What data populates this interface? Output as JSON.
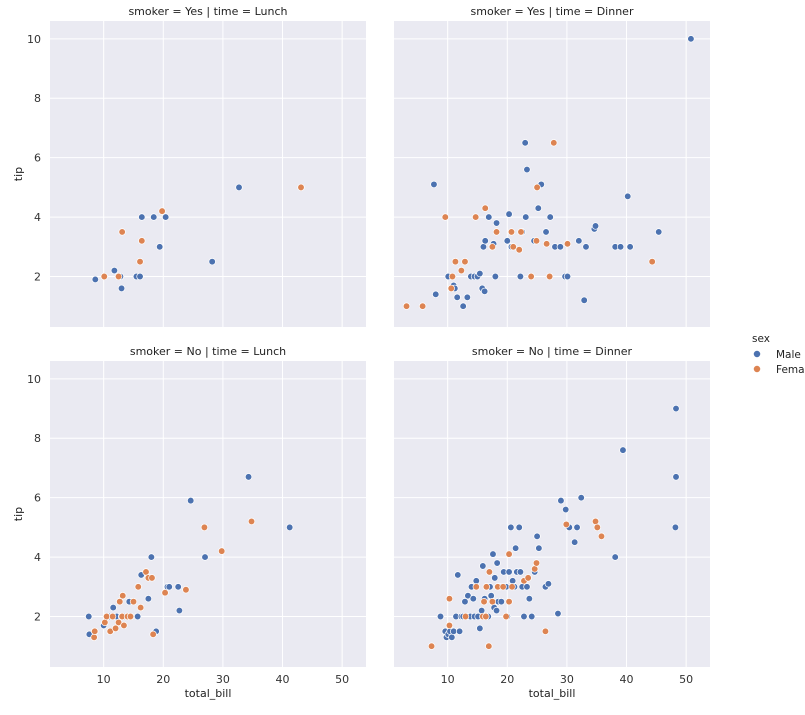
{
  "chart_data": {
    "type": "scatter",
    "x_label": "total_bill",
    "y_label": "tip",
    "xlim": [
      1,
      54
    ],
    "ylim": [
      0.3,
      10.6
    ],
    "x_ticks": [
      10,
      20,
      30,
      40,
      50
    ],
    "y_ticks": [
      2,
      4,
      6,
      8,
      10
    ],
    "legend": {
      "title": "sex",
      "entries": [
        {
          "label": "Male",
          "color": "#4C72B0"
        },
        {
          "label": "Female",
          "color": "#DD8452"
        }
      ],
      "placement": "right"
    },
    "panels": [
      {
        "title": "smoker = Yes | time = Lunch",
        "row": 0,
        "col": 0,
        "series": [
          {
            "name": "Male",
            "points": [
              [
                8.6,
                1.9
              ],
              [
                11.8,
                2.2
              ],
              [
                12.8,
                2.0
              ],
              [
                13.0,
                1.6
              ],
              [
                15.5,
                2.0
              ],
              [
                16.1,
                2.0
              ],
              [
                16.4,
                4.0
              ],
              [
                18.4,
                4.0
              ],
              [
                19.4,
                3.0
              ],
              [
                20.4,
                4.0
              ],
              [
                28.2,
                2.5
              ],
              [
                32.7,
                5.0
              ]
            ]
          },
          {
            "name": "Female",
            "points": [
              [
                10.1,
                2.0
              ],
              [
                12.5,
                2.0
              ],
              [
                13.1,
                3.5
              ],
              [
                16.1,
                2.5
              ],
              [
                16.4,
                3.2
              ],
              [
                19.8,
                4.2
              ],
              [
                43.1,
                5.0
              ]
            ]
          }
        ]
      },
      {
        "title": "smoker = Yes | time = Dinner",
        "row": 0,
        "col": 1,
        "series": [
          {
            "name": "Male",
            "points": [
              [
                7.7,
                5.1
              ],
              [
                8.0,
                1.4
              ],
              [
                10.1,
                2.0
              ],
              [
                11.0,
                1.7
              ],
              [
                11.2,
                1.6
              ],
              [
                11.6,
                1.3
              ],
              [
                12.6,
                1.0
              ],
              [
                13.3,
                1.3
              ],
              [
                13.9,
                2.0
              ],
              [
                14.5,
                2.0
              ],
              [
                15.0,
                2.0
              ],
              [
                15.4,
                2.1
              ],
              [
                15.8,
                1.6
              ],
              [
                16.0,
                3.0
              ],
              [
                16.2,
                1.5
              ],
              [
                16.3,
                3.2
              ],
              [
                16.9,
                4.0
              ],
              [
                17.4,
                3.0
              ],
              [
                17.7,
                3.1
              ],
              [
                18.0,
                2.0
              ],
              [
                18.2,
                3.8
              ],
              [
                20.0,
                3.2
              ],
              [
                20.3,
                4.1
              ],
              [
                20.7,
                3.0
              ],
              [
                22.2,
                2.0
              ],
              [
                22.5,
                3.5
              ],
              [
                23.0,
                6.5
              ],
              [
                23.1,
                4.0
              ],
              [
                23.3,
                5.6
              ],
              [
                24.0,
                2.0
              ],
              [
                24.5,
                3.2
              ],
              [
                25.2,
                4.3
              ],
              [
                25.7,
                5.1
              ],
              [
                26.5,
                3.5
              ],
              [
                27.2,
                4.0
              ],
              [
                28.0,
                3.0
              ],
              [
                28.9,
                3.0
              ],
              [
                29.7,
                2.0
              ],
              [
                30.1,
                2.0
              ],
              [
                32.0,
                3.2
              ],
              [
                32.9,
                1.2
              ],
              [
                33.2,
                3.0
              ],
              [
                34.6,
                3.6
              ],
              [
                34.8,
                3.7
              ],
              [
                38.1,
                3.0
              ],
              [
                39.0,
                3.0
              ],
              [
                40.2,
                4.7
              ],
              [
                40.6,
                3.0
              ],
              [
                45.4,
                3.5
              ],
              [
                50.8,
                10.0
              ]
            ]
          },
          {
            "name": "Female",
            "points": [
              [
                3.1,
                1.0
              ],
              [
                5.8,
                1.0
              ],
              [
                9.6,
                4.0
              ],
              [
                10.6,
                1.6
              ],
              [
                10.8,
                2.0
              ],
              [
                11.3,
                2.5
              ],
              [
                12.3,
                2.2
              ],
              [
                12.9,
                2.5
              ],
              [
                14.7,
                4.0
              ],
              [
                16.3,
                4.3
              ],
              [
                17.5,
                3.0
              ],
              [
                18.2,
                3.5
              ],
              [
                20.7,
                3.5
              ],
              [
                21.0,
                3.0
              ],
              [
                22.0,
                2.9
              ],
              [
                22.3,
                3.5
              ],
              [
                24.0,
                2.0
              ],
              [
                24.9,
                3.2
              ],
              [
                25.0,
                5.0
              ],
              [
                26.6,
                3.1
              ],
              [
                27.1,
                2.0
              ],
              [
                27.8,
                6.5
              ],
              [
                30.1,
                3.1
              ],
              [
                44.3,
                2.5
              ]
            ]
          }
        ]
      },
      {
        "title": "smoker = No | time = Lunch",
        "row": 1,
        "col": 0,
        "series": [
          {
            "name": "Male",
            "points": [
              [
                7.5,
                2.0
              ],
              [
                7.6,
                1.4
              ],
              [
                8.5,
                1.5
              ],
              [
                10.0,
                1.7
              ],
              [
                11.0,
                2.0
              ],
              [
                11.6,
                2.3
              ],
              [
                12.2,
                2.0
              ],
              [
                13.0,
                2.0
              ],
              [
                13.5,
                2.0
              ],
              [
                14.3,
                2.5
              ],
              [
                15.7,
                2.0
              ],
              [
                16.3,
                3.4
              ],
              [
                17.5,
                2.6
              ],
              [
                18.0,
                4.0
              ],
              [
                18.8,
                1.5
              ],
              [
                20.7,
                3.0
              ],
              [
                21.0,
                3.0
              ],
              [
                22.5,
                3.0
              ],
              [
                22.7,
                2.2
              ],
              [
                24.6,
                5.9
              ],
              [
                27.0,
                4.0
              ],
              [
                34.3,
                6.7
              ],
              [
                41.2,
                5.0
              ]
            ]
          },
          {
            "name": "Female",
            "points": [
              [
                8.4,
                1.3
              ],
              [
                8.5,
                1.5
              ],
              [
                10.2,
                1.8
              ],
              [
                10.5,
                2.0
              ],
              [
                11.1,
                1.5
              ],
              [
                11.5,
                2.0
              ],
              [
                12.0,
                1.6
              ],
              [
                12.5,
                1.8
              ],
              [
                12.7,
                2.5
              ],
              [
                13.1,
                2.0
              ],
              [
                13.4,
                1.7
              ],
              [
                13.2,
                2.7
              ],
              [
                14.0,
                2.0
              ],
              [
                14.5,
                2.0
              ],
              [
                15.0,
                2.5
              ],
              [
                15.8,
                3.0
              ],
              [
                16.2,
                2.3
              ],
              [
                17.1,
                3.5
              ],
              [
                17.5,
                3.3
              ],
              [
                18.3,
                1.4
              ],
              [
                18.1,
                3.3
              ],
              [
                20.3,
                2.8
              ],
              [
                23.8,
                2.9
              ],
              [
                26.9,
                5.0
              ],
              [
                29.8,
                4.2
              ],
              [
                34.8,
                5.2
              ]
            ]
          }
        ]
      },
      {
        "title": "smoker = No | time = Dinner",
        "row": 1,
        "col": 1,
        "series": [
          {
            "name": "Male",
            "points": [
              [
                8.8,
                2.0
              ],
              [
                9.6,
                1.5
              ],
              [
                9.8,
                1.3
              ],
              [
                10.1,
                1.4
              ],
              [
                10.3,
                1.7
              ],
              [
                10.4,
                1.5
              ],
              [
                10.7,
                1.3
              ],
              [
                11.0,
                1.5
              ],
              [
                11.4,
                2.0
              ],
              [
                11.7,
                3.4
              ],
              [
                12.0,
                1.5
              ],
              [
                12.3,
                2.0
              ],
              [
                12.6,
                2.0
              ],
              [
                12.9,
                2.5
              ],
              [
                13.3,
                2.0
              ],
              [
                13.4,
                2.7
              ],
              [
                13.8,
                2.0
              ],
              [
                14.0,
                3.0
              ],
              [
                14.3,
                2.6
              ],
              [
                14.5,
                2.0
              ],
              [
                14.8,
                3.2
              ],
              [
                15.1,
                2.0
              ],
              [
                15.4,
                1.6
              ],
              [
                15.7,
                2.2
              ],
              [
                15.9,
                3.7
              ],
              [
                16.2,
                2.6
              ],
              [
                16.5,
                3.0
              ],
              [
                16.8,
                2.0
              ],
              [
                17.1,
                3.0
              ],
              [
                17.3,
                2.7
              ],
              [
                17.6,
                4.1
              ],
              [
                17.8,
                2.3
              ],
              [
                17.9,
                3.3
              ],
              [
                18.2,
                2.2
              ],
              [
                18.3,
                3.8
              ],
              [
                18.5,
                2.5
              ],
              [
                18.7,
                3.0
              ],
              [
                19.0,
                2.5
              ],
              [
                19.4,
                3.5
              ],
              [
                19.8,
                3.0
              ],
              [
                20.0,
                2.0
              ],
              [
                20.3,
                3.5
              ],
              [
                20.6,
                5.0
              ],
              [
                20.9,
                3.2
              ],
              [
                21.2,
                3.0
              ],
              [
                21.4,
                4.3
              ],
              [
                21.6,
                3.5
              ],
              [
                22.0,
                5.0
              ],
              [
                22.2,
                3.5
              ],
              [
                22.5,
                3.0
              ],
              [
                22.8,
                2.0
              ],
              [
                23.3,
                3.0
              ],
              [
                23.7,
                2.6
              ],
              [
                24.1,
                2.0
              ],
              [
                24.6,
                3.5
              ],
              [
                25.0,
                4.7
              ],
              [
                25.3,
                4.3
              ],
              [
                26.4,
                3.0
              ],
              [
                26.9,
                3.1
              ],
              [
                28.5,
                2.1
              ],
              [
                29.0,
                5.9
              ],
              [
                29.8,
                5.6
              ],
              [
                30.4,
                5.0
              ],
              [
                31.3,
                4.5
              ],
              [
                31.7,
                5.0
              ],
              [
                32.4,
                6.0
              ],
              [
                38.1,
                4.0
              ],
              [
                39.4,
                7.6
              ],
              [
                48.2,
                5.0
              ],
              [
                48.3,
                6.7
              ],
              [
                48.3,
                9.0
              ]
            ]
          },
          {
            "name": "Female",
            "points": [
              [
                7.3,
                1.0
              ],
              [
                10.3,
                1.7
              ],
              [
                10.3,
                2.6
              ],
              [
                13.0,
                2.0
              ],
              [
                14.8,
                3.0
              ],
              [
                15.9,
                2.0
              ],
              [
                16.1,
                2.5
              ],
              [
                16.4,
                2.0
              ],
              [
                16.5,
                3.0
              ],
              [
                16.9,
                1.0
              ],
              [
                17.0,
                3.5
              ],
              [
                17.5,
                2.5
              ],
              [
                18.4,
                3.0
              ],
              [
                19.3,
                3.0
              ],
              [
                19.8,
                2.0
              ],
              [
                20.3,
                2.5
              ],
              [
                20.3,
                4.1
              ],
              [
                20.8,
                3.0
              ],
              [
                22.8,
                3.2
              ],
              [
                23.5,
                3.3
              ],
              [
                24.6,
                3.6
              ],
              [
                24.9,
                3.8
              ],
              [
                26.4,
                1.5
              ],
              [
                29.9,
                5.1
              ],
              [
                34.8,
                5.2
              ],
              [
                35.1,
                5.0
              ],
              [
                35.8,
                4.7
              ]
            ]
          }
        ]
      }
    ]
  }
}
